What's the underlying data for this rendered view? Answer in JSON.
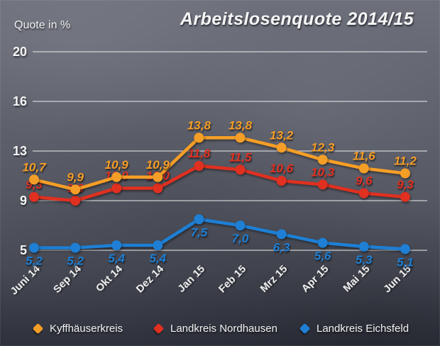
{
  "title": "Arbeitslosenquote 2014/15",
  "y_axis_label": "Quote in %",
  "chart_data": {
    "type": "line",
    "title": "Arbeitslosenquote 2014/15",
    "ylabel": "Quote in %",
    "xlabel": "",
    "categories": [
      "Juni 14",
      "Sep 14",
      "Okt 14",
      "Dez 14",
      "Jan 15",
      "Feb 15",
      "Mrz 15",
      "Apr 15",
      "Mai 15",
      "Jun 15"
    ],
    "y_ticks": [
      20,
      16,
      13,
      9,
      5
    ],
    "ylim": [
      5,
      20
    ],
    "grid": true,
    "legend_position": "bottom",
    "series": [
      {
        "name": "Kyffhäuserkreis",
        "color": "#F59E27",
        "values": [
          10.7,
          9.9,
          10.9,
          10.9,
          13.8,
          13.8,
          13.2,
          12.3,
          11.6,
          11.2
        ],
        "labels": [
          "10,7",
          "9,9",
          "10,9",
          "10,9",
          "13,8",
          "13,8",
          "13,2",
          "12,3",
          "11,6",
          "11,2"
        ],
        "label_position": "above"
      },
      {
        "name": "Landkreis Nordhausen",
        "color": "#E03020",
        "values": [
          9.3,
          9.0,
          10.0,
          10.0,
          11.8,
          11.5,
          10.6,
          10.3,
          9.6,
          9.3
        ],
        "labels": [
          "9,3",
          "9,0",
          "10,0",
          "10,0",
          "11,8",
          "11,5",
          "10,6",
          "10,3",
          "9,6",
          "9,3"
        ],
        "label_position": "above"
      },
      {
        "name": "Landkreis Eichsfeld",
        "color": "#1E7FD4",
        "values": [
          5.2,
          5.2,
          5.4,
          5.4,
          7.5,
          7.0,
          6.3,
          5.6,
          5.3,
          5.1
        ],
        "labels": [
          "5,2",
          "5,2",
          "5,4",
          "5,4",
          "7,5",
          "7,0",
          "6,3",
          "5,6",
          "5,3",
          "5,1"
        ],
        "label_position": "below"
      }
    ]
  }
}
